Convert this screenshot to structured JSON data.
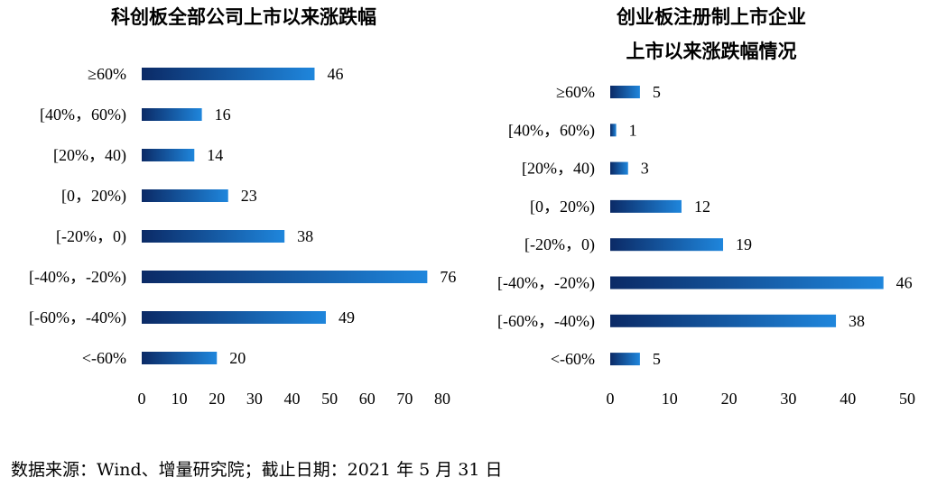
{
  "charts": [
    {
      "type": "bar",
      "orientation": "horizontal",
      "title_lines": [
        "科创板全部公司上市以来涨跌幅"
      ],
      "categories": [
        "≥60%",
        "[40%，60%)",
        "[20%，40)",
        "[0，20%)",
        "[-20%，0)",
        "[-40%，-20%)",
        "[-60%，-40%)",
        "<-60%"
      ],
      "values": [
        46,
        16,
        14,
        23,
        38,
        76,
        49,
        20
      ],
      "xlim": [
        0,
        80
      ],
      "xticks": [
        0,
        10,
        20,
        30,
        40,
        50,
        60,
        70,
        80
      ],
      "grid": false,
      "bar_colors": [
        "#0b2a66",
        "#1f86dc"
      ]
    },
    {
      "type": "bar",
      "orientation": "horizontal",
      "title_lines": [
        "创业板注册制上市企业",
        "上市以来涨跌幅情况"
      ],
      "categories": [
        "≥60%",
        "[40%，60%)",
        "[20%，40)",
        "[0，20%)",
        "[-20%，0)",
        "[-40%，-20%)",
        "[-60%，-40%)",
        "<-60%"
      ],
      "values": [
        5,
        1,
        3,
        12,
        19,
        46,
        38,
        5
      ],
      "xlim": [
        0,
        50
      ],
      "xticks": [
        0,
        10,
        20,
        30,
        40,
        50
      ],
      "grid": false,
      "bar_colors": [
        "#0b2a66",
        "#1f86dc"
      ]
    }
  ],
  "source_note": "数据来源：Wind、增量研究院；截止日期：2021 年 5 月 31 日"
}
